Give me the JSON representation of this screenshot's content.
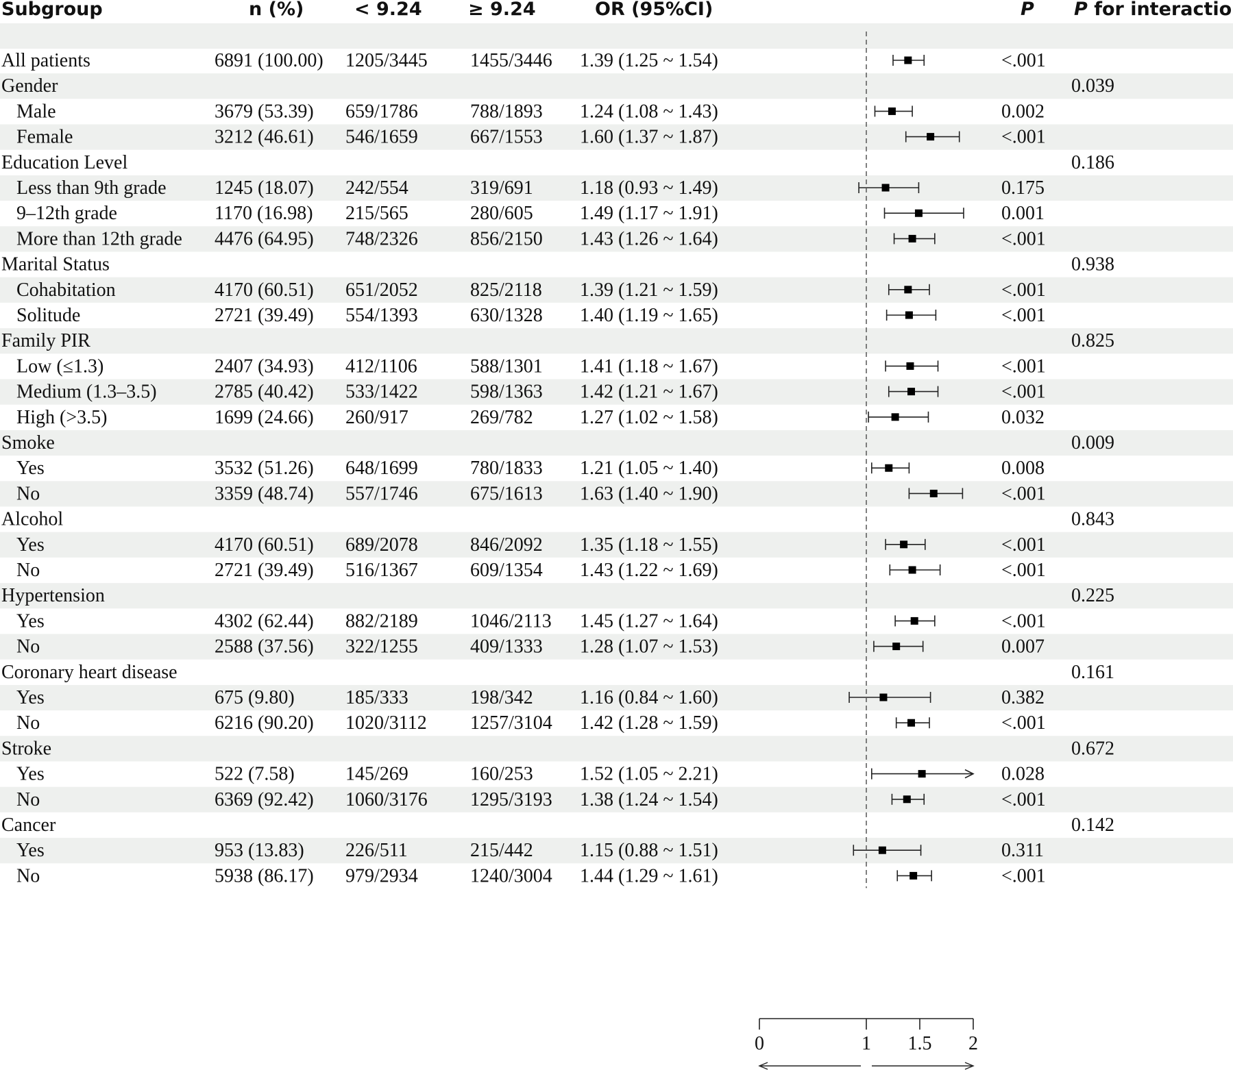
{
  "headers": {
    "subgroup": "Subgroup",
    "n_pct": "n (%)",
    "low": "< 9.24",
    "high": "≥ 9.24",
    "or": "OR (95%CI)",
    "p": "P",
    "p_interaction_italic": "P",
    "p_interaction_rest": " for interaction"
  },
  "chart_data": {
    "type": "forest",
    "reference_line": 1,
    "xlim": [
      0,
      2
    ],
    "x_ticks": [
      "0",
      "1",
      "1.5",
      "2"
    ],
    "rows": [
      {
        "label": "All patients",
        "n": "6891 (100.00)",
        "low": "1205/3445",
        "high": "1455/3446",
        "or_text": "1.39 (1.25 ~ 1.54)",
        "or": 1.39,
        "lower": 1.25,
        "upper": 1.54,
        "p": "<.001",
        "p_int": ""
      },
      {
        "label": "Gender",
        "is_group": true,
        "p_int": "0.039"
      },
      {
        "label": "Male",
        "indent": 1,
        "n": "3679 (53.39)",
        "low": "659/1786",
        "high": "788/1893",
        "or_text": "1.24 (1.08 ~ 1.43)",
        "or": 1.24,
        "lower": 1.08,
        "upper": 1.43,
        "p": "0.002"
      },
      {
        "label": "Female",
        "indent": 1,
        "n": "3212 (46.61)",
        "low": "546/1659",
        "high": "667/1553",
        "or_text": "1.60 (1.37 ~ 1.87)",
        "or": 1.6,
        "lower": 1.37,
        "upper": 1.87,
        "p": "<.001"
      },
      {
        "label": "Education Level",
        "is_group": true,
        "p_int": "0.186"
      },
      {
        "label": "Less than 9th grade",
        "indent": 1,
        "n": "1245 (18.07)",
        "low": "242/554",
        "high": "319/691",
        "or_text": "1.18 (0.93 ~ 1.49)",
        "or": 1.18,
        "lower": 0.93,
        "upper": 1.49,
        "p": "0.175"
      },
      {
        "label": "9–12th grade",
        "indent": 1,
        "n": "1170 (16.98)",
        "low": "215/565",
        "high": "280/605",
        "or_text": "1.49 (1.17 ~ 1.91)",
        "or": 1.49,
        "lower": 1.17,
        "upper": 1.91,
        "p": "0.001"
      },
      {
        "label": "More than 12th grade",
        "indent": 1,
        "n": "4476 (64.95)",
        "low": "748/2326",
        "high": "856/2150",
        "or_text": "1.43 (1.26 ~ 1.64)",
        "or": 1.43,
        "lower": 1.26,
        "upper": 1.64,
        "p": "<.001"
      },
      {
        "label": "Marital Status",
        "is_group": true,
        "p_int": "0.938"
      },
      {
        "label": "Cohabitation",
        "indent": 1,
        "n": "4170 (60.51)",
        "low": "651/2052",
        "high": "825/2118",
        "or_text": "1.39 (1.21 ~ 1.59)",
        "or": 1.39,
        "lower": 1.21,
        "upper": 1.59,
        "p": "<.001"
      },
      {
        "label": "Solitude",
        "indent": 1,
        "n": "2721 (39.49)",
        "low": "554/1393",
        "high": "630/1328",
        "or_text": "1.40 (1.19 ~ 1.65)",
        "or": 1.4,
        "lower": 1.19,
        "upper": 1.65,
        "p": "<.001"
      },
      {
        "label": "Family PIR",
        "is_group": true,
        "p_int": "0.825"
      },
      {
        "label": "Low (≤1.3)",
        "indent": 1,
        "n": "2407 (34.93)",
        "low": "412/1106",
        "high": "588/1301",
        "or_text": "1.41 (1.18 ~ 1.67)",
        "or": 1.41,
        "lower": 1.18,
        "upper": 1.67,
        "p": "<.001"
      },
      {
        "label": "Medium (1.3–3.5)",
        "indent": 1,
        "n": "2785 (40.42)",
        "low": "533/1422",
        "high": "598/1363",
        "or_text": "1.42 (1.21 ~ 1.67)",
        "or": 1.42,
        "lower": 1.21,
        "upper": 1.67,
        "p": "<.001"
      },
      {
        "label": "High (>3.5)",
        "indent": 1,
        "n": "1699 (24.66)",
        "low": "260/917",
        "high": "269/782",
        "or_text": "1.27 (1.02 ~ 1.58)",
        "or": 1.27,
        "lower": 1.02,
        "upper": 1.58,
        "p": "0.032"
      },
      {
        "label": "Smoke",
        "is_group": true,
        "p_int": "0.009"
      },
      {
        "label": "Yes",
        "indent": 1,
        "n": "3532 (51.26)",
        "low": "648/1699",
        "high": "780/1833",
        "or_text": "1.21 (1.05 ~ 1.40)",
        "or": 1.21,
        "lower": 1.05,
        "upper": 1.4,
        "p": "0.008"
      },
      {
        "label": "No",
        "indent": 1,
        "n": "3359 (48.74)",
        "low": "557/1746",
        "high": "675/1613",
        "or_text": "1.63 (1.40 ~ 1.90)",
        "or": 1.63,
        "lower": 1.4,
        "upper": 1.9,
        "p": "<.001"
      },
      {
        "label": "Alcohol",
        "is_group": true,
        "p_int": "0.843"
      },
      {
        "label": "Yes",
        "indent": 1,
        "n": "4170 (60.51)",
        "low": "689/2078",
        "high": "846/2092",
        "or_text": "1.35 (1.18 ~ 1.55)",
        "or": 1.35,
        "lower": 1.18,
        "upper": 1.55,
        "p": "<.001"
      },
      {
        "label": "No",
        "indent": 1,
        "n": "2721 (39.49)",
        "low": "516/1367",
        "high": "609/1354",
        "or_text": "1.43 (1.22 ~ 1.69)",
        "or": 1.43,
        "lower": 1.22,
        "upper": 1.69,
        "p": "<.001"
      },
      {
        "label": "Hypertension",
        "is_group": true,
        "p_int": "0.225"
      },
      {
        "label": "Yes",
        "indent": 1,
        "n": "4302 (62.44)",
        "low": "882/2189",
        "high": "1046/2113",
        "or_text": "1.45 (1.27 ~ 1.64)",
        "or": 1.45,
        "lower": 1.27,
        "upper": 1.64,
        "p": "<.001"
      },
      {
        "label": "No",
        "indent": 1,
        "n": "2588 (37.56)",
        "low": "322/1255",
        "high": "409/1333",
        "or_text": "1.28 (1.07 ~ 1.53)",
        "or": 1.28,
        "lower": 1.07,
        "upper": 1.53,
        "p": "0.007"
      },
      {
        "label": "Coronary heart disease",
        "is_group": true,
        "p_int": "0.161"
      },
      {
        "label": "Yes",
        "indent": 1,
        "n": "675 (9.80)",
        "low": "185/333",
        "high": "198/342",
        "or_text": "1.16 (0.84 ~ 1.60)",
        "or": 1.16,
        "lower": 0.84,
        "upper": 1.6,
        "p": "0.382"
      },
      {
        "label": "No",
        "indent": 1,
        "n": "6216 (90.20)",
        "low": "1020/3112",
        "high": "1257/3104",
        "or_text": "1.42 (1.28 ~ 1.59)",
        "or": 1.42,
        "lower": 1.28,
        "upper": 1.59,
        "p": "<.001"
      },
      {
        "label": "Stroke",
        "is_group": true,
        "p_int": "0.672"
      },
      {
        "label": "Yes",
        "indent": 1,
        "n": "522 (7.58)",
        "low": "145/269",
        "high": "160/253",
        "or_text": "1.52 (1.05 ~ 2.21)",
        "or": 1.52,
        "lower": 1.05,
        "upper": 2.21,
        "p": "0.028"
      },
      {
        "label": "No",
        "indent": 1,
        "n": "6369 (92.42)",
        "low": "1060/3176",
        "high": "1295/3193",
        "or_text": "1.38 (1.24 ~ 1.54)",
        "or": 1.38,
        "lower": 1.24,
        "upper": 1.54,
        "p": "<.001"
      },
      {
        "label": "Cancer",
        "is_group": true,
        "p_int": "0.142"
      },
      {
        "label": "Yes",
        "indent": 1,
        "n": "953 (13.83)",
        "low": "226/511",
        "high": "215/442",
        "or_text": "1.15 (0.88 ~ 1.51)",
        "or": 1.15,
        "lower": 0.88,
        "upper": 1.51,
        "p": "0.311"
      },
      {
        "label": "No",
        "indent": 1,
        "n": "5938 (86.17)",
        "low": "979/2934",
        "high": "1240/3004",
        "or_text": "1.44 (1.29 ~ 1.61)",
        "or": 1.44,
        "lower": 1.29,
        "upper": 1.61,
        "p": "<.001"
      }
    ]
  },
  "colors": {
    "stripe": "#eef0ee",
    "text": "#111111",
    "line": "#222222",
    "dash": "#555555"
  }
}
